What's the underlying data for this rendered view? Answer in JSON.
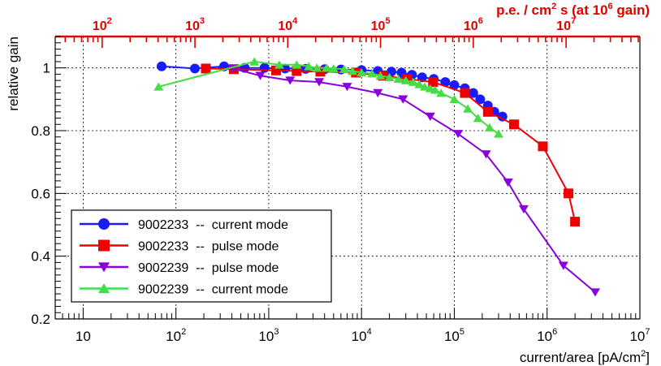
{
  "chart_data": {
    "type": "line",
    "xscale": "log",
    "xlim": [
      5,
      10000000
    ],
    "ylim": [
      0.2,
      1.1
    ],
    "xlabel": "current/area [pA/cm",
    "xlabel_sup": "2",
    "xlabel_tail": "]",
    "ylabel": "relative gain",
    "grid": true,
    "x_ticks": [
      {
        "value": 10,
        "base": "10",
        "exp": ""
      },
      {
        "value": 100,
        "base": "10",
        "exp": "2"
      },
      {
        "value": 1000,
        "base": "10",
        "exp": "3"
      },
      {
        "value": 10000,
        "base": "10",
        "exp": "4"
      },
      {
        "value": 100000,
        "base": "10",
        "exp": "5"
      },
      {
        "value": 1000000,
        "base": "10",
        "exp": "6"
      },
      {
        "value": 10000000,
        "base": "10",
        "exp": "7"
      }
    ],
    "y_ticks": [
      {
        "value": 0.2,
        "label": "0.2"
      },
      {
        "value": 0.4,
        "label": "0.4"
      },
      {
        "value": 0.6,
        "label": "0.6"
      },
      {
        "value": 0.8,
        "label": "0.8"
      },
      {
        "value": 1.0,
        "label": "1"
      }
    ],
    "top_axis": {
      "title_pre": "p.e. / cm",
      "title_sup1": "2",
      "title_mid": " s (at 10",
      "title_sup2": "6",
      "title_post": " gain)",
      "color": "#e00000",
      "ticks": [
        {
          "value": 100,
          "base": "10",
          "exp": "2"
        },
        {
          "value": 1000,
          "base": "10",
          "exp": "3"
        },
        {
          "value": 10000,
          "base": "10",
          "exp": "4"
        },
        {
          "value": 100000,
          "base": "10",
          "exp": "5"
        },
        {
          "value": 1000000,
          "base": "10",
          "exp": "6"
        },
        {
          "value": 10000000,
          "base": "10",
          "exp": "7"
        }
      ],
      "pe_per_pA_factor": 6.24
    },
    "series": [
      {
        "name": "9002233  --  current mode",
        "color": "#1a1aff",
        "marker": "circle",
        "x": [
          70,
          160,
          330,
          550,
          900,
          1500,
          2500,
          4000,
          6000,
          10000,
          15000,
          21000,
          27000,
          35000,
          45000,
          60000,
          80000,
          100000,
          130000,
          160000,
          190000,
          230000,
          270000,
          330000
        ],
        "y": [
          1.005,
          0.998,
          1.005,
          1.0,
          1.0,
          0.998,
          0.997,
          0.996,
          0.995,
          0.993,
          0.99,
          0.988,
          0.985,
          0.978,
          0.97,
          0.965,
          0.955,
          0.945,
          0.935,
          0.92,
          0.9,
          0.88,
          0.86,
          0.845
        ]
      },
      {
        "name": "9002233  --  pulse mode",
        "color": "#ee0000",
        "marker": "square",
        "x": [
          210,
          420,
          1200,
          2000,
          3600,
          8700,
          17000,
          31000,
          59000,
          130000,
          230000,
          440000,
          900000,
          1700000,
          2000000
        ],
        "y": [
          0.998,
          0.996,
          0.992,
          0.99,
          0.988,
          0.985,
          0.975,
          0.965,
          0.955,
          0.92,
          0.86,
          0.82,
          0.75,
          0.6,
          0.51
        ]
      },
      {
        "name": "9002239  --  pulse mode",
        "color": "#8800dd",
        "marker": "triangle-down",
        "x": [
          410,
          810,
          1700,
          3500,
          7000,
          15000,
          28000,
          55000,
          110000,
          220000,
          380000,
          560000,
          1500000,
          3300000
        ],
        "y": [
          0.998,
          0.975,
          0.96,
          0.955,
          0.94,
          0.92,
          0.9,
          0.845,
          0.79,
          0.725,
          0.635,
          0.55,
          0.37,
          0.285
        ]
      },
      {
        "name": "9002239  --  current mode",
        "color": "#44dd44",
        "marker": "triangle-up",
        "x": [
          65,
          700,
          1300,
          2000,
          2700,
          3300,
          4200,
          5000,
          6500,
          8000,
          10000,
          13000,
          16000,
          20000,
          25000,
          30000,
          36000,
          42000,
          48000,
          55000,
          62000,
          72000,
          100000,
          140000,
          180000,
          240000,
          300000
        ],
        "y": [
          0.94,
          1.02,
          1.01,
          1.01,
          1.005,
          1.0,
          1.0,
          0.998,
          0.996,
          0.99,
          0.985,
          0.982,
          0.975,
          0.97,
          0.965,
          0.96,
          0.955,
          0.948,
          0.94,
          0.935,
          0.93,
          0.92,
          0.9,
          0.87,
          0.84,
          0.81,
          0.79
        ]
      }
    ],
    "legend_position": "bottom-left"
  }
}
